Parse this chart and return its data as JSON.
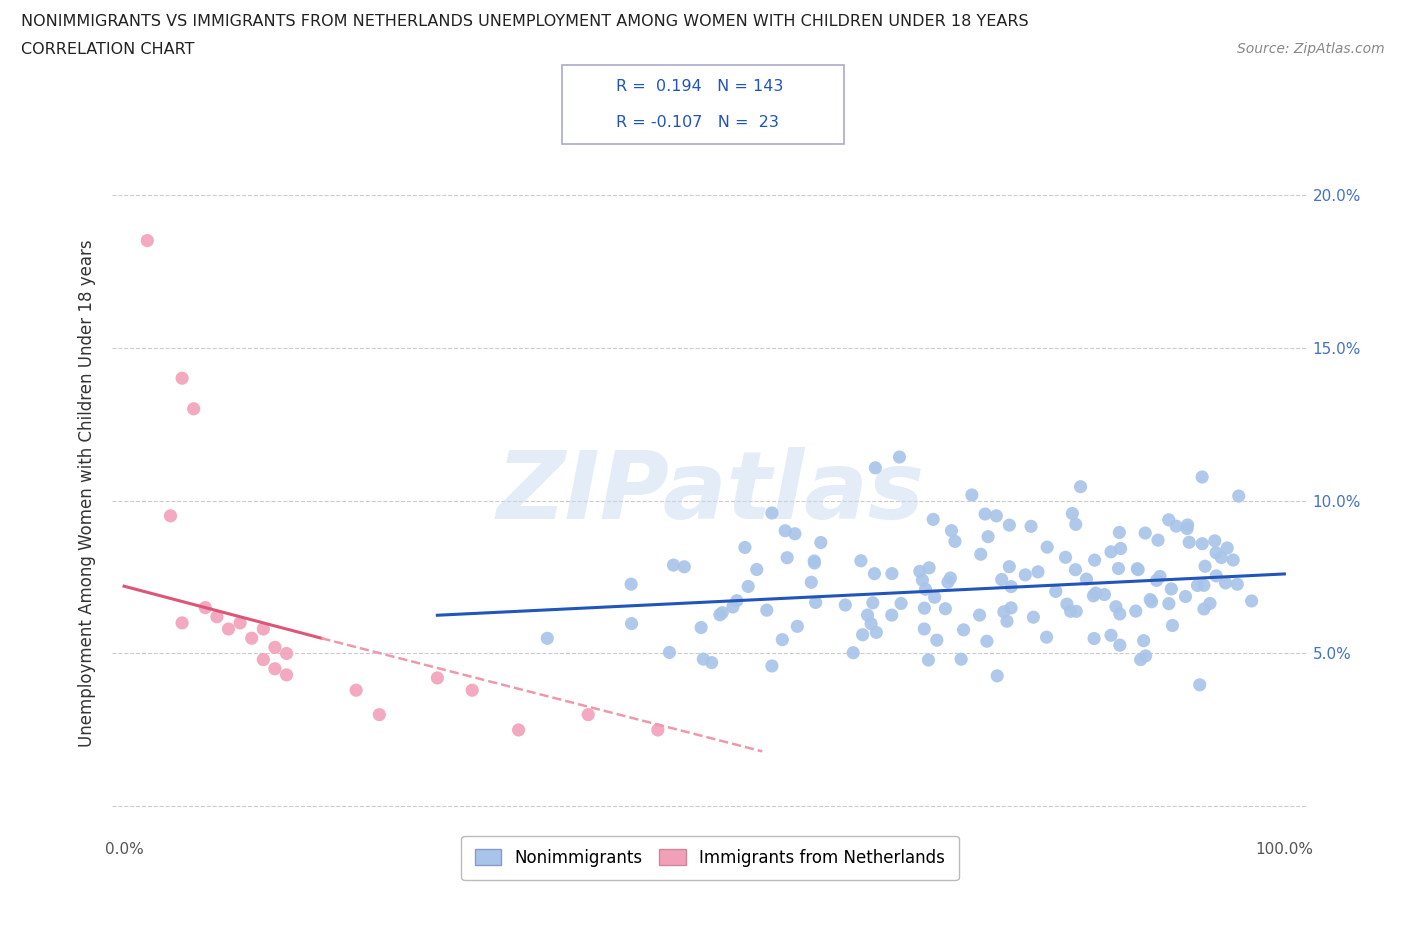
{
  "title_line1": "NONIMMIGRANTS VS IMMIGRANTS FROM NETHERLANDS UNEMPLOYMENT AMONG WOMEN WITH CHILDREN UNDER 18 YEARS",
  "title_line2": "CORRELATION CHART",
  "source_text": "Source: ZipAtlas.com",
  "ylabel": "Unemployment Among Women with Children Under 18 years",
  "watermark_text": "ZIPatlas",
  "nonimm_color": "#a8c4e8",
  "imm_color": "#f2a0b8",
  "nonimm_line_color": "#2255bb",
  "imm_line_solid_color": "#dd5577",
  "imm_line_dash_color": "#ee99aa",
  "legend_color": "#2255bb",
  "grid_color": "#cccccc",
  "bg_color": "#ffffff",
  "nonimm_R": 0.194,
  "nonimm_N": 143,
  "imm_R": -0.107,
  "imm_N": 23,
  "nonimm_line_x0": 0.27,
  "nonimm_line_x1": 1.0,
  "nonimm_line_y0": 0.0625,
  "nonimm_line_y1": 0.076,
  "imm_line_solid_x0": 0.0,
  "imm_line_solid_x1": 0.17,
  "imm_line_solid_y0": 0.072,
  "imm_line_solid_y1": 0.055,
  "imm_line_dash_x0": 0.17,
  "imm_line_dash_x1": 0.55,
  "imm_line_dash_y0": 0.055,
  "imm_line_dash_y1": 0.018,
  "xlim": [
    -0.01,
    1.02
  ],
  "ylim": [
    -0.01,
    0.215
  ],
  "ytick_pos": [
    0.0,
    0.05,
    0.1,
    0.15,
    0.2
  ],
  "ytick_labels": [
    "",
    "5.0%",
    "10.0%",
    "15.0%",
    "20.0%"
  ],
  "xtick_pos": [
    0.0,
    0.1,
    0.2,
    0.3,
    0.4,
    0.5,
    0.6,
    0.7,
    0.8,
    0.9,
    1.0
  ],
  "xtick_labels": [
    "0.0%",
    "",
    "",
    "",
    "",
    "",
    "",
    "",
    "",
    "",
    "100.0%"
  ],
  "legend_entries": [
    "Nonimmigrants",
    "Immigrants from Netherlands"
  ],
  "seed": 99
}
